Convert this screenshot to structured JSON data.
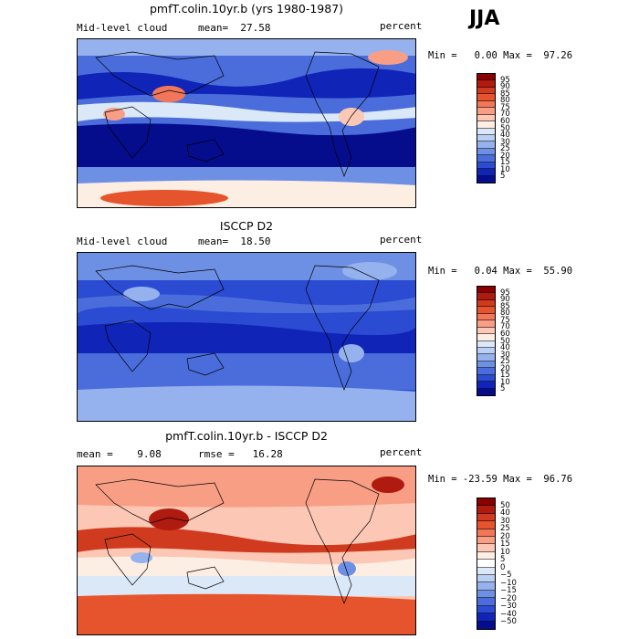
{
  "season": "JJA",
  "panels": [
    {
      "title": "pmfT.colin.10yr.b (yrs 1980-1987)",
      "left_label": "Mid-level cloud",
      "mean_label": "mean=  27.58",
      "units": "percent",
      "minmax": "Min =   0.00 Max =  97.26",
      "colorbar": {
        "labels": [
          "95",
          "90",
          "85",
          "80",
          "75",
          "70",
          "60",
          "50",
          "40",
          "30",
          "25",
          "20",
          "15",
          "10",
          "5"
        ],
        "colors": [
          "#8b0000",
          "#b01b10",
          "#d03a1e",
          "#e6542d",
          "#f2775a",
          "#f89e85",
          "#fcc8b5",
          "#fdeee4",
          "#dbe8f8",
          "#b9cff4",
          "#95b2ee",
          "#6e90e4",
          "#4a6ddb",
          "#2a4bd2",
          "#1024b8",
          "#050d8c"
        ]
      },
      "map_theme": "sim"
    },
    {
      "title": "ISCCP D2",
      "left_label": "Mid-level cloud",
      "mean_label": "mean=  18.50",
      "units": "percent",
      "minmax": "Min =   0.04 Max =  55.90",
      "colorbar": {
        "labels": [
          "95",
          "90",
          "85",
          "80",
          "75",
          "70",
          "60",
          "50",
          "40",
          "30",
          "25",
          "20",
          "15",
          "10",
          "5"
        ],
        "colors": [
          "#8b0000",
          "#b01b10",
          "#d03a1e",
          "#e6542d",
          "#f2775a",
          "#f89e85",
          "#fcc8b5",
          "#fdeee4",
          "#dbe8f8",
          "#b9cff4",
          "#95b2ee",
          "#6e90e4",
          "#4a6ddb",
          "#2a4bd2",
          "#1024b8",
          "#050d8c"
        ]
      },
      "map_theme": "obs"
    },
    {
      "title": "pmfT.colin.10yr.b - ISCCP D2",
      "left_label": "mean =    9.08",
      "mean_label": "rmse =   16.28",
      "units": "percent",
      "minmax": "Min = -23.59 Max =  96.76",
      "colorbar": {
        "labels": [
          "50",
          "40",
          "30",
          "25",
          "20",
          "15",
          "10",
          "5",
          "0",
          "−5",
          "−10",
          "−15",
          "−20",
          "−30",
          "−40",
          "−50"
        ],
        "colors": [
          "#8b0000",
          "#b01b10",
          "#d03a1e",
          "#e6542d",
          "#f2775a",
          "#f89e85",
          "#fcc8b5",
          "#fdeee4",
          "#ffffff",
          "#dbe8f8",
          "#b9cff4",
          "#95b2ee",
          "#6e90e4",
          "#4a6ddb",
          "#2a4bd2",
          "#1024b8",
          "#050d8c"
        ]
      },
      "map_theme": "diff"
    }
  ]
}
